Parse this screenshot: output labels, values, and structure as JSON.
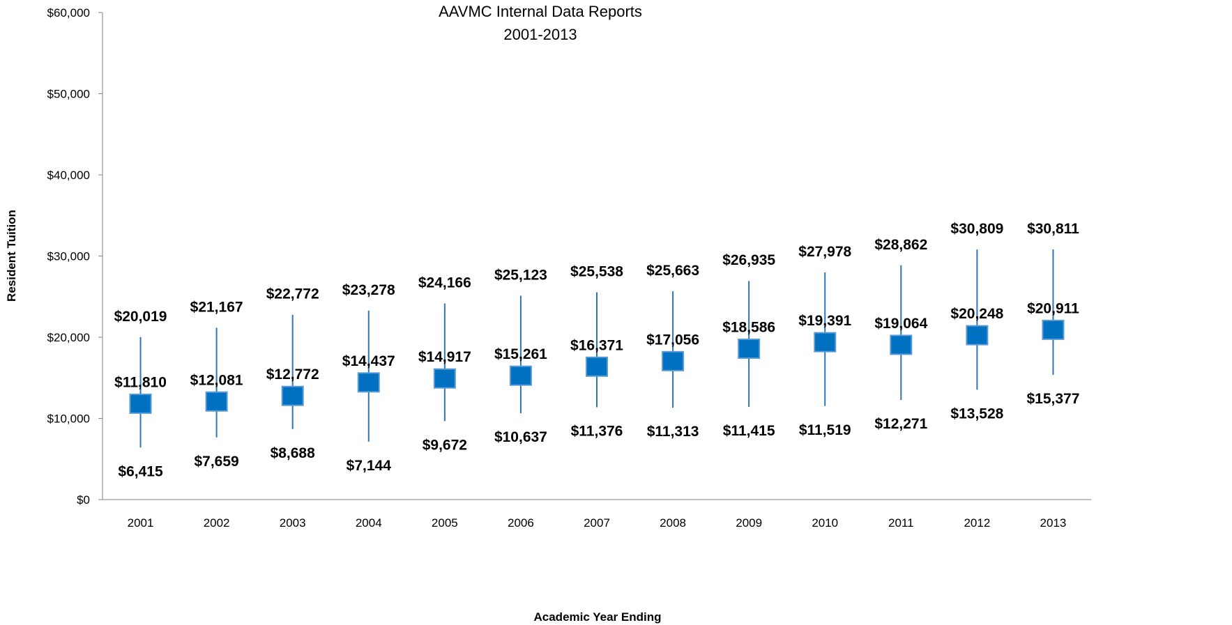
{
  "chart_data": {
    "type": "range",
    "title": "AAVMC Internal Data Reports",
    "subtitle": "2001-2013",
    "xlabel": "Academic Year Ending",
    "ylabel": "Resident Tuition",
    "ylim": [
      0,
      60000
    ],
    "y_ticks": [
      0,
      10000,
      20000,
      30000,
      40000,
      50000,
      60000
    ],
    "y_tick_labels": [
      "$0",
      "$10,000",
      "$20,000",
      "$30,000",
      "$40,000",
      "$50,000",
      "$60,000"
    ],
    "grid": false,
    "legend": "none",
    "categories": [
      "2001",
      "2002",
      "2003",
      "2004",
      "2005",
      "2006",
      "2007",
      "2008",
      "2009",
      "2010",
      "2011",
      "2012",
      "2013"
    ],
    "series": [
      {
        "values": [
          20019,
          21167,
          22772,
          23278,
          24166,
          25123,
          25538,
          25663,
          26935,
          27978,
          28862,
          30809,
          30811
        ],
        "labels": [
          "$20,019",
          "$21,167",
          "$22,772",
          "$23,278",
          "$24,166",
          "$25,123",
          "$25,538",
          "$25,663",
          "$26,935",
          "$27,978",
          "$28,862",
          "$30,809",
          "$30,811"
        ]
      },
      {
        "values": [
          11810,
          12081,
          12772,
          14437,
          14917,
          15261,
          16371,
          17056,
          18586,
          19391,
          19064,
          20248,
          20911
        ],
        "labels": [
          "$11,810",
          "$12,081",
          "$12,772",
          "$14,437",
          "$14,917",
          "$15,261",
          "$16,371",
          "$17,056",
          "$18,586",
          "$19,391",
          "$19,064",
          "$20,248",
          "$20,911"
        ]
      },
      {
        "values": [
          6415,
          7659,
          8688,
          7144,
          9672,
          10637,
          11376,
          11313,
          11415,
          11519,
          12271,
          13528,
          15377
        ],
        "labels": [
          "$6,415",
          "$7,659",
          "$8,688",
          "$7,144",
          "$9,672",
          "$10,637",
          "$11,376",
          "$11,313",
          "$11,415",
          "$11,519",
          "$12,271",
          "$13,528",
          "$15,377"
        ]
      }
    ],
    "colors": {
      "marker": "#0070C0",
      "marker_border": "#5B9BD5",
      "whisker": "#2E75B6",
      "axis": "#808080"
    }
  }
}
